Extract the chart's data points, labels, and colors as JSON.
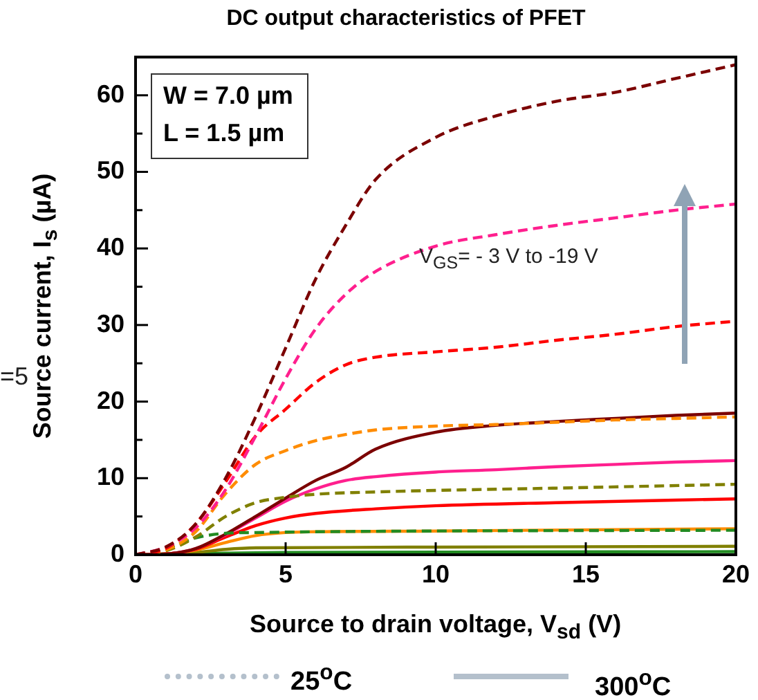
{
  "chart_data": {
    "type": "line",
    "title": "DC output characteristics of PFET",
    "xlabel": "Source to drain voltage, V$_{sd}$ (V)",
    "ylabel": "Source current, I$_{s}$ (µA)",
    "xlim": [
      0,
      20
    ],
    "xticks": [
      0,
      5,
      10,
      15,
      20
    ],
    "ylim": [
      0,
      65
    ],
    "yticks": [
      0,
      {
        "value": 5,
        "label": null
      },
      10,
      {
        "value": 15,
        "label": null
      },
      20,
      {
        "value": 25,
        "label": null
      },
      30,
      {
        "value": 35,
        "label": null
      },
      40,
      {
        "value": 45,
        "label": null
      },
      50,
      {
        "value": 55,
        "label": null
      },
      60
    ],
    "annotations": [
      "W = 7.0 µm",
      "L = 1.5 µm",
      "V$_{GS}$= - 3 V to -19 V",
      "=5",
      "25$^{o}$C",
      "300$^{o}$C"
    ],
    "marker": "none",
    "series": [
      {
        "color": "#7b0000",
        "line_style": "dashed",
        "x": [
          0,
          1,
          2,
          3,
          4,
          5,
          6,
          7,
          8,
          10,
          12,
          14,
          16,
          18,
          20
        ],
        "values": [
          0,
          1,
          4,
          10,
          18,
          27,
          36,
          43,
          49,
          54.5,
          57.3,
          59.2,
          60.4,
          62.2,
          64
        ]
      },
      {
        "color": "#ff1f8e",
        "line_style": "dashed",
        "x": [
          0,
          1,
          2,
          3,
          4,
          5,
          6,
          7,
          8,
          10,
          12,
          14,
          16,
          18,
          20
        ],
        "values": [
          0,
          1,
          3.5,
          8.5,
          15.5,
          23,
          29.5,
          34,
          37,
          40.3,
          41.8,
          43,
          44,
          45,
          45.8
        ]
      },
      {
        "color": "#ff0000",
        "line_style": "dashed",
        "x": [
          0,
          1,
          2,
          3,
          4,
          5,
          6,
          7,
          8,
          10,
          12,
          14,
          16,
          18,
          20
        ],
        "values": [
          0,
          0.8,
          4,
          9.5,
          15.5,
          19,
          22.5,
          24.8,
          25.8,
          26.5,
          27.1,
          28,
          28.8,
          29.8,
          30.5
        ]
      },
      {
        "color": "#ff8c00",
        "line_style": "dashed",
        "x": [
          0,
          1,
          2,
          3,
          4,
          5,
          6,
          7,
          8,
          10,
          12,
          14,
          16,
          18,
          20
        ],
        "values": [
          0,
          0.6,
          3,
          8,
          11.8,
          13.6,
          14.9,
          15.7,
          16.3,
          16.8,
          17,
          17.3,
          17.6,
          17.8,
          18
        ]
      },
      {
        "color": "#808000",
        "line_style": "dashed",
        "x": [
          0,
          1,
          2,
          3,
          4,
          5,
          6,
          8,
          10,
          14,
          20
        ],
        "values": [
          0,
          0.5,
          2.3,
          5,
          6.8,
          7.5,
          7.9,
          8.2,
          8.4,
          8.7,
          9.2
        ]
      },
      {
        "color": "#228b22",
        "line_style": "dashed",
        "x": [
          0,
          1,
          2,
          3,
          4,
          6,
          10,
          20
        ],
        "values": [
          0,
          0.8,
          2.2,
          2.8,
          2.9,
          3,
          3.1,
          3.2
        ]
      },
      {
        "color": "#7b0000",
        "line_style": "solid",
        "x": [
          0,
          1,
          2,
          3,
          4,
          5,
          6,
          7,
          8,
          10,
          12,
          14,
          16,
          18,
          20
        ],
        "values": [
          0,
          0.1,
          0.8,
          2.7,
          5,
          7.4,
          9.7,
          11.4,
          13.8,
          16,
          16.9,
          17.4,
          17.8,
          18.2,
          18.5
        ]
      },
      {
        "color": "#ff1f8e",
        "line_style": "solid",
        "x": [
          0,
          1,
          2,
          3,
          4,
          5,
          6,
          7,
          8,
          10,
          12,
          14,
          16,
          18,
          20
        ],
        "values": [
          0,
          0.1,
          0.8,
          2.6,
          4.8,
          7,
          8.6,
          9.7,
          10.2,
          10.8,
          11.1,
          11.5,
          11.8,
          12.1,
          12.3
        ]
      },
      {
        "color": "#ff0000",
        "line_style": "solid",
        "x": [
          0,
          1,
          2,
          3,
          4,
          5,
          6,
          8,
          10,
          14,
          20
        ],
        "values": [
          0,
          0.1,
          0.7,
          2.3,
          3.8,
          4.8,
          5.4,
          6,
          6.4,
          6.8,
          7.3
        ]
      },
      {
        "color": "#ff8c00",
        "line_style": "solid",
        "x": [
          0,
          1,
          2,
          3,
          4,
          5,
          6,
          10,
          20
        ],
        "values": [
          0,
          0.1,
          0.6,
          1.6,
          2.5,
          2.9,
          3,
          3.1,
          3.4
        ]
      },
      {
        "color": "#808000",
        "line_style": "solid",
        "x": [
          0,
          2,
          3,
          4,
          10,
          20
        ],
        "values": [
          0,
          0.3,
          0.7,
          0.9,
          1,
          1.1
        ]
      },
      {
        "color": "#228b22",
        "line_style": "solid",
        "x": [
          0,
          3,
          5,
          20
        ],
        "values": [
          0,
          0.2,
          0.3,
          0.4
        ]
      }
    ]
  }
}
